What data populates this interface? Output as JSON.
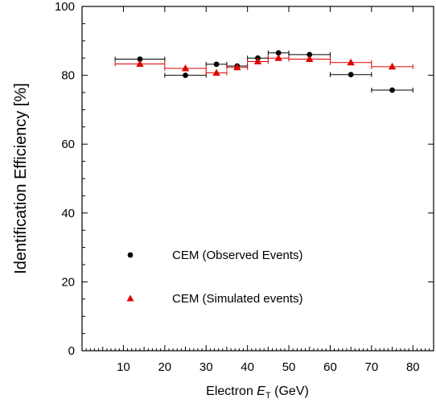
{
  "chart_data": {
    "type": "scatter",
    "xlabel_prefix": "Electron ",
    "xlabel_var": "E",
    "xlabel_sub": "T",
    "xlabel_suffix": " (GeV)",
    "ylabel": "Identification Efficiency [%]",
    "xlim": [
      0,
      85
    ],
    "ylim": [
      0,
      100
    ],
    "xticks": [
      10,
      20,
      30,
      40,
      50,
      60,
      70,
      80
    ],
    "yticks": [
      0,
      20,
      40,
      60,
      80,
      100
    ],
    "grid": false,
    "legend_position": "bottom-left",
    "series": [
      {
        "name": "CEM (Observed Events)",
        "marker": "circle",
        "color": "#000000",
        "points": [
          {
            "x": 14,
            "y": 84.7,
            "xlo": 8,
            "xhi": 20
          },
          {
            "x": 25,
            "y": 80.0,
            "xlo": 20,
            "xhi": 30
          },
          {
            "x": 32.5,
            "y": 83.2,
            "xlo": 30,
            "xhi": 35
          },
          {
            "x": 37.5,
            "y": 82.7,
            "xlo": 35,
            "xhi": 40
          },
          {
            "x": 42.5,
            "y": 85.0,
            "xlo": 40,
            "xhi": 45
          },
          {
            "x": 47.5,
            "y": 86.5,
            "xlo": 45,
            "xhi": 50
          },
          {
            "x": 55,
            "y": 86.0,
            "xlo": 50,
            "xhi": 60
          },
          {
            "x": 65,
            "y": 80.2,
            "xlo": 60,
            "xhi": 70
          },
          {
            "x": 75,
            "y": 75.7,
            "xlo": 70,
            "xhi": 80
          }
        ]
      },
      {
        "name": "CEM (Simulated events)",
        "marker": "triangle",
        "color": "#e00000",
        "points": [
          {
            "x": 14,
            "y": 83.3,
            "xlo": 8,
            "xhi": 20
          },
          {
            "x": 25,
            "y": 82.0,
            "xlo": 20,
            "xhi": 30
          },
          {
            "x": 32.5,
            "y": 80.7,
            "xlo": 30,
            "xhi": 35
          },
          {
            "x": 37.5,
            "y": 82.3,
            "xlo": 35,
            "xhi": 40
          },
          {
            "x": 42.5,
            "y": 84.0,
            "xlo": 40,
            "xhi": 45
          },
          {
            "x": 47.5,
            "y": 85.0,
            "xlo": 45,
            "xhi": 50
          },
          {
            "x": 55,
            "y": 84.7,
            "xlo": 50,
            "xhi": 60
          },
          {
            "x": 65,
            "y": 83.7,
            "xlo": 60,
            "xhi": 70
          },
          {
            "x": 75,
            "y": 82.5,
            "xlo": 70,
            "xhi": 80
          }
        ]
      }
    ]
  }
}
